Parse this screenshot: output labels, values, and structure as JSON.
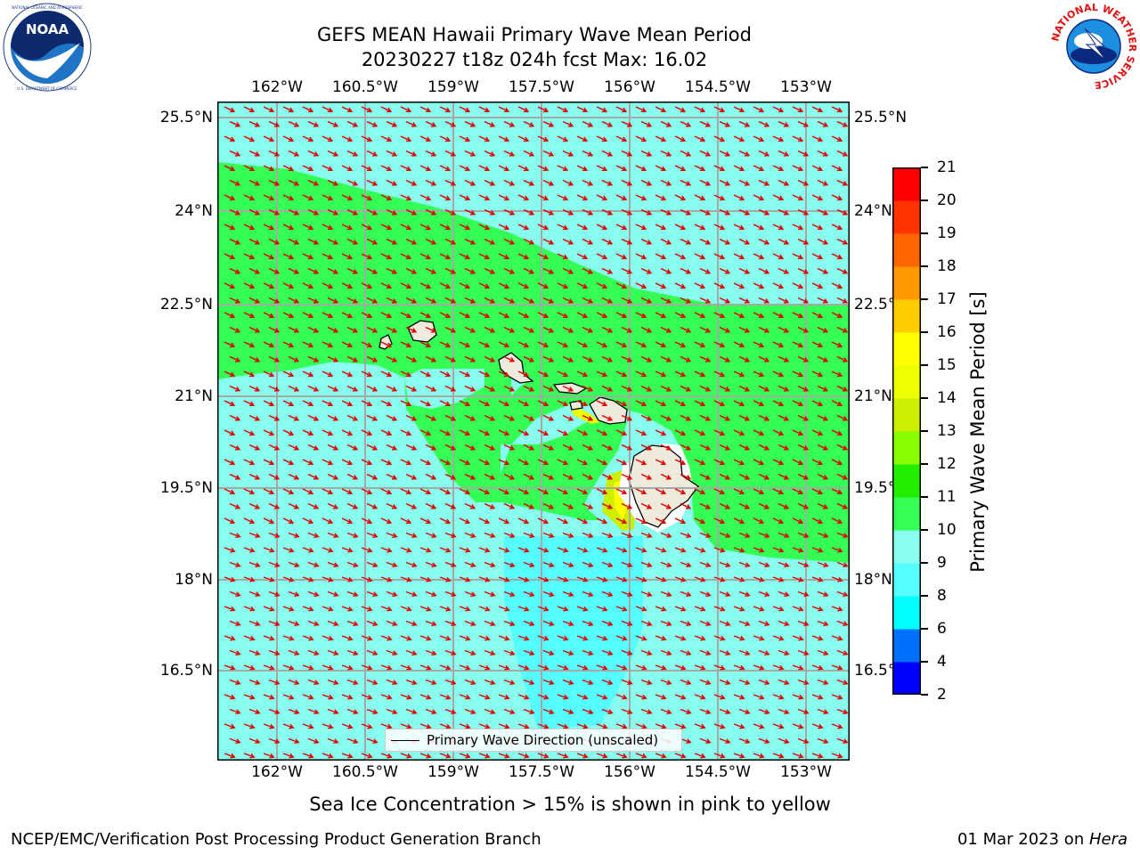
{
  "header": {
    "title_line1": "GEFS MEAN Hawaii Primary Wave Mean Period",
    "title_line2": "20230227 t18z 024h fcst   Max: 16.02"
  },
  "logos": {
    "left": {
      "name": "NOAA",
      "text": "NOAA",
      "ring_text": "NATIONAL OCEANIC AND ATMOSPHERIC ADMINISTRATION · U.S. DEPARTMENT OF COMMERCE"
    },
    "right": {
      "name": "National Weather Service",
      "ring_text": "NATIONAL WEATHER SERVICE"
    }
  },
  "map": {
    "longitude_labels": [
      "162°W",
      "160.5°W",
      "159°W",
      "157.5°W",
      "156°W",
      "154.5°W",
      "153°W"
    ],
    "latitude_labels": [
      "25.5°N",
      "24°N",
      "22.5°N",
      "21°N",
      "19.5°N",
      "18°N",
      "16.5°N"
    ],
    "arrow_color": "#e00000",
    "legend_label": "Primary Wave Direction (unscaled)"
  },
  "colorbar": {
    "label": "Primary Wave Mean Period [s]",
    "ticks": [
      "2",
      "4",
      "6",
      "8",
      "9",
      "10",
      "11",
      "12",
      "13",
      "14",
      "15",
      "16",
      "17",
      "18",
      "19",
      "20",
      "21"
    ],
    "colors": [
      "#0000ff",
      "#0070ff",
      "#00ffff",
      "#55ffff",
      "#88ffee",
      "#33ff55",
      "#22ee00",
      "#88ff00",
      "#ccee00",
      "#eeff00",
      "#ffff00",
      "#ffcc00",
      "#ff9900",
      "#ff6600",
      "#ff3300",
      "#ff0000"
    ]
  },
  "subtitle": "Sea Ice Concentration > 15% is shown in pink to yellow",
  "footer": {
    "left": "NCEP/EMC/Verification Post Processing Product Generation Branch",
    "right_prefix": "01 Mar 2023 on ",
    "right_host": "Hera"
  }
}
